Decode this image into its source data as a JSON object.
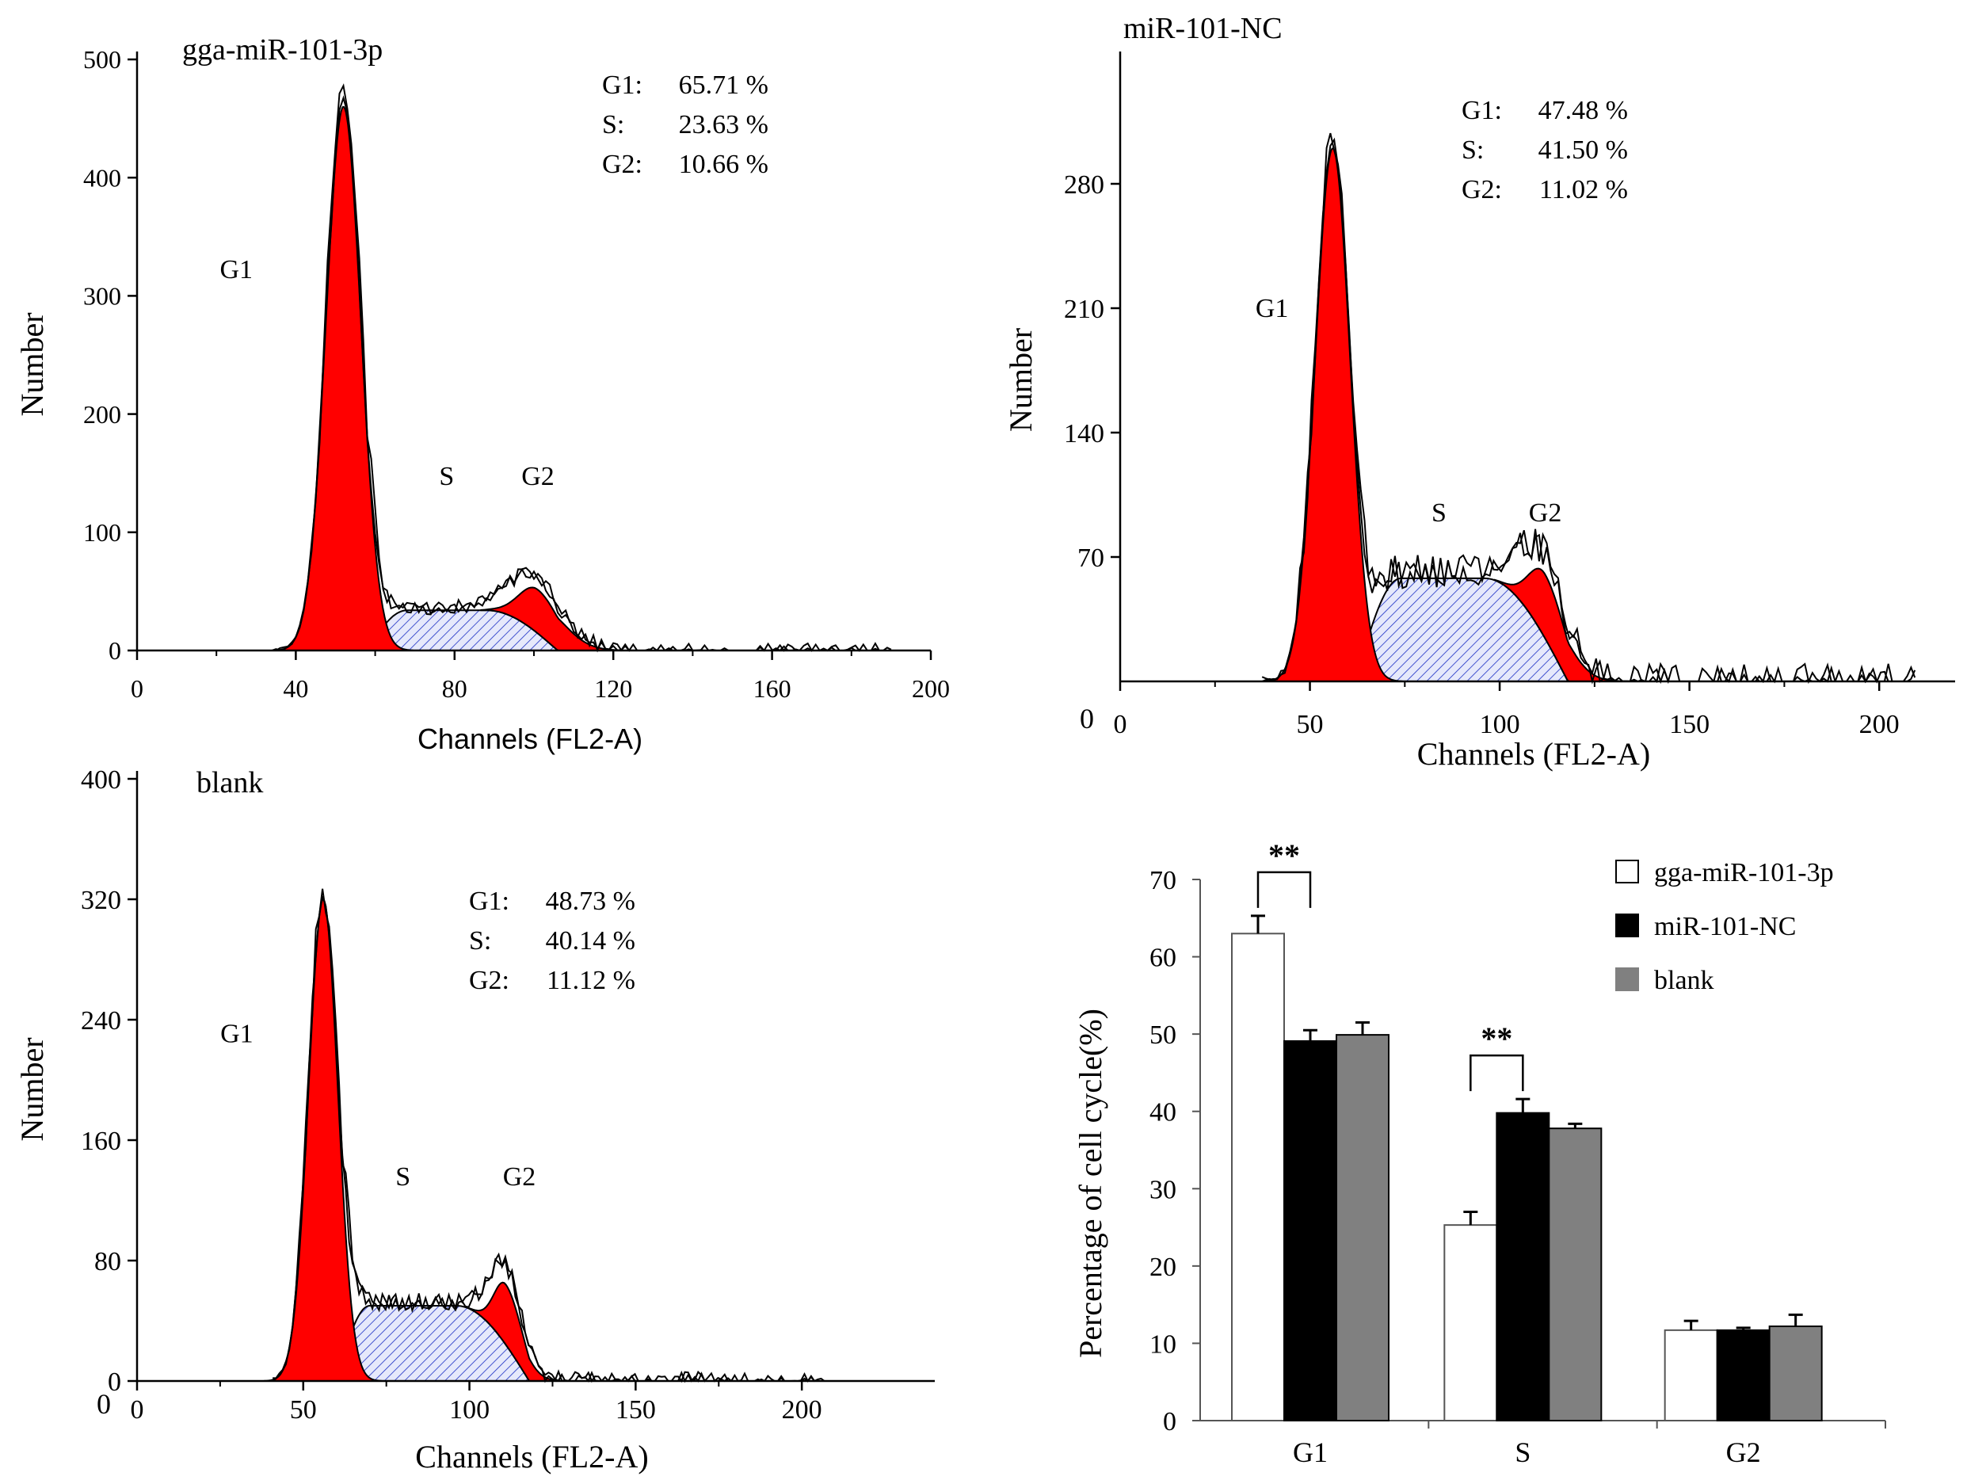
{
  "chart_data": [
    {
      "type": "area",
      "panel": "A",
      "title": "gga-miR-101-3p",
      "xlabel": "Channels (FL2-A)",
      "ylabel": "Number",
      "xlim": [
        0,
        200
      ],
      "ylim": [
        0,
        500
      ],
      "xticks": [
        0,
        40,
        80,
        120,
        160,
        200
      ],
      "yticks": [
        0,
        100,
        200,
        300,
        400,
        500
      ],
      "stats": [
        {
          "label": "G1:",
          "value": "65.71 %"
        },
        {
          "label": "S:",
          "value": "23.63 %"
        },
        {
          "label": "G2:",
          "value": "10.66 %"
        }
      ],
      "phase_labels": [
        {
          "text": "G1",
          "x": 25,
          "y": 315
        },
        {
          "text": "S",
          "x": 78,
          "y": 140
        },
        {
          "text": "G2",
          "x": 101,
          "y": 140
        }
      ],
      "g1": {
        "center": 52,
        "sd": 4.4,
        "peak": 460
      },
      "s": {
        "start": 58,
        "top_start": 68,
        "top_end": 88,
        "end": 106,
        "height": 34
      },
      "g2": {
        "center": 101,
        "sd": 6.5,
        "peak": 37
      },
      "histogram_end": 190,
      "noise_amp": 6
    },
    {
      "type": "area",
      "panel": "B",
      "title": "miR-101-NC",
      "xlabel": "Channels (FL2-A)",
      "ylabel": "Number",
      "xlim": [
        0,
        220
      ],
      "ylim": [
        0,
        350
      ],
      "xtick_zero_label": "0",
      "xticks": [
        0,
        50,
        100,
        150,
        200
      ],
      "yticks": [
        70,
        140,
        210,
        280
      ],
      "stats": [
        {
          "label": "G1:",
          "value": "47.48 %"
        },
        {
          "label": "S:",
          "value": "41.50 %"
        },
        {
          "label": "G2:",
          "value": "11.02 %"
        }
      ],
      "phase_labels": [
        {
          "text": "G1",
          "x": 40,
          "y": 205
        },
        {
          "text": "S",
          "x": 84,
          "y": 90
        },
        {
          "text": "G2",
          "x": 112,
          "y": 90
        }
      ],
      "g1": {
        "center": 56,
        "sd": 4.6,
        "peak": 300
      },
      "s": {
        "start": 62,
        "top_start": 74,
        "top_end": 96,
        "end": 118,
        "height": 58
      },
      "g2": {
        "center": 112,
        "sd": 6,
        "peak": 36
      },
      "histogram_end": 210,
      "noise_amp": 10
    },
    {
      "type": "area",
      "panel": "C",
      "title": "blank",
      "xlabel": "Channels (FL2-A)",
      "ylabel": "Number",
      "xlim": [
        0,
        240
      ],
      "ylim": [
        0,
        400
      ],
      "xtick_zero_label": "0",
      "xticks": [
        0,
        50,
        100,
        150,
        200
      ],
      "yticks": [
        0,
        80,
        160,
        240,
        320,
        400
      ],
      "stats": [
        {
          "label": "G1:",
          "value": "48.73 %"
        },
        {
          "label": "S:",
          "value": "40.14 %"
        },
        {
          "label": "G2:",
          "value": "11.12 %"
        }
      ],
      "phase_labels": [
        {
          "text": "G1",
          "x": 30,
          "y": 225
        },
        {
          "text": "S",
          "x": 80,
          "y": 130
        },
        {
          "text": "G2",
          "x": 115,
          "y": 130
        }
      ],
      "g1": {
        "center": 56,
        "sd": 4.4,
        "peak": 320
      },
      "s": {
        "start": 60,
        "top_start": 70,
        "top_end": 96,
        "end": 118,
        "height": 50
      },
      "g2": {
        "center": 111,
        "sd": 5,
        "peak": 40
      },
      "histogram_end": 210,
      "noise_amp": 6
    },
    {
      "type": "bar",
      "panel": "D",
      "title": "",
      "xlabel": "",
      "ylabel": "Percentage of cell cycle(%)",
      "categories": [
        "G1",
        "S",
        "G2"
      ],
      "ylim": [
        0,
        70
      ],
      "yticks": [
        0,
        10,
        20,
        30,
        40,
        50,
        60,
        70
      ],
      "series": [
        {
          "name": "gga-miR-101-3p",
          "color": "#ffffff",
          "values": [
            63.0,
            25.3,
            11.7
          ],
          "errors": [
            2.3,
            1.7,
            1.2
          ]
        },
        {
          "name": "miR-101-NC",
          "color": "#000000",
          "values": [
            49.1,
            39.8,
            11.7
          ],
          "errors": [
            1.4,
            1.8,
            0.3
          ]
        },
        {
          "name": "blank",
          "color": "#808080",
          "values": [
            49.9,
            37.8,
            12.2
          ],
          "errors": [
            1.6,
            0.6,
            1.5
          ]
        }
      ],
      "legend_position": "top-right",
      "significance": [
        {
          "category": 0,
          "label": "**"
        },
        {
          "category": 1,
          "label": "**"
        }
      ]
    }
  ],
  "colors": {
    "g1_fill": "#ff0000",
    "g2_fill": "#ff0000",
    "s_hatch": "#1b2fc4",
    "s_fill": "#e6e9fb",
    "line": "#000000"
  }
}
